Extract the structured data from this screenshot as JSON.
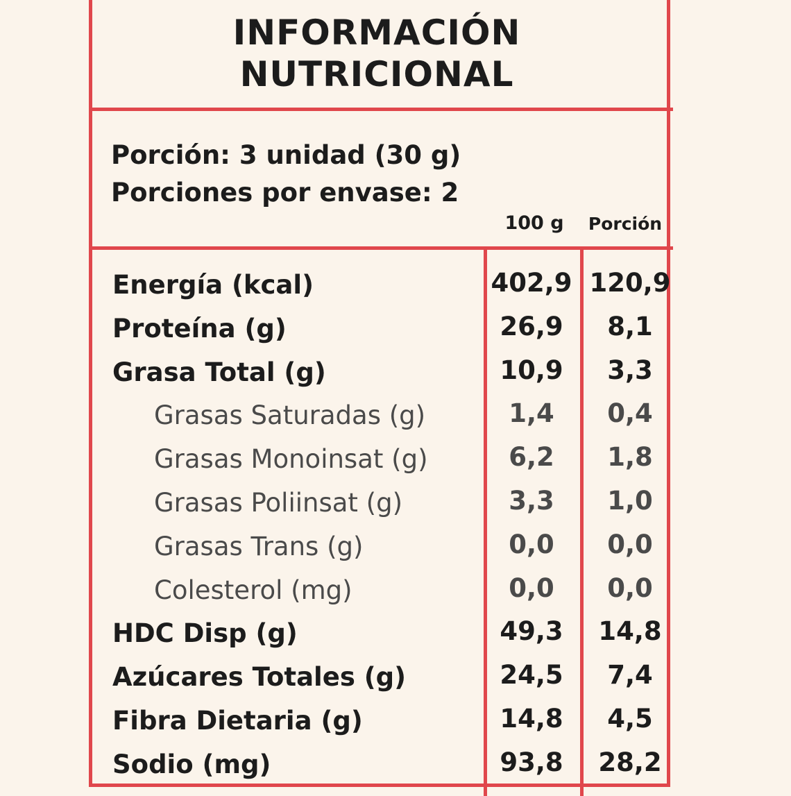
{
  "header": {
    "title": [
      "INFORMACIÓN",
      "NUTRICIONAL"
    ]
  },
  "serving": {
    "portion": "Porción: 3 unidad (30 g)",
    "per_package": "Porciones por envase: 2"
  },
  "columns": [
    "100 g",
    "Porción"
  ],
  "rows": [
    {
      "label": "Energía (kcal)",
      "values": [
        "402,9",
        "120,9"
      ]
    },
    {
      "label": "Proteína (g)",
      "values": [
        "26,9",
        "8,1"
      ]
    },
    {
      "label": "Grasa Total (g)",
      "values": [
        "10,9",
        "3,3"
      ],
      "subrows": [
        {
          "label": "Grasas Saturadas (g)",
          "values": [
            "1,4",
            "0,4"
          ]
        },
        {
          "label": "Grasas Monoinsat (g)",
          "values": [
            "6,2",
            "1,8"
          ]
        },
        {
          "label": "Grasas Poliinsat (g)",
          "values": [
            "3,3",
            "1,0"
          ]
        },
        {
          "label": "Grasas Trans (g)",
          "values": [
            "0,0",
            "0,0"
          ]
        },
        {
          "label": "Colesterol (mg)",
          "values": [
            "0,0",
            "0,0"
          ]
        }
      ]
    },
    {
      "label": "HDC Disp (g)",
      "values": [
        "49,3",
        "14,8"
      ]
    },
    {
      "label": "Azúcares Totales (g)",
      "values": [
        "24,5",
        "7,4"
      ]
    },
    {
      "label": "Fibra Dietaria (g)",
      "values": [
        "14,8",
        "4,5"
      ]
    },
    {
      "label": "Sodio (mg)",
      "values": [
        "93,8",
        "28,2"
      ]
    }
  ]
}
